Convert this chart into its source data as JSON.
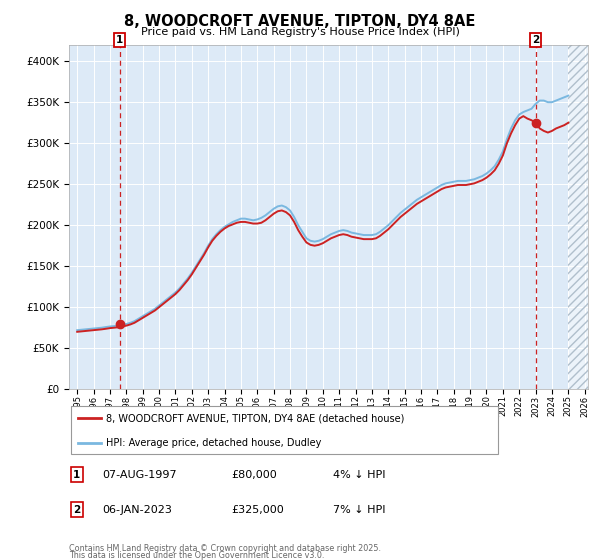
{
  "title": "8, WOODCROFT AVENUE, TIPTON, DY4 8AE",
  "subtitle": "Price paid vs. HM Land Registry's House Price Index (HPI)",
  "ylim": [
    0,
    420000
  ],
  "xlim_start": 1994.5,
  "xlim_end": 2026.2,
  "hatch_start": 2025.0,
  "sale1_year": 1997.6,
  "sale1_price": 80000,
  "sale2_year": 2023.02,
  "sale2_price": 325000,
  "legend_line1": "8, WOODCROFT AVENUE, TIPTON, DY4 8AE (detached house)",
  "legend_line2": "HPI: Average price, detached house, Dudley",
  "annotation1_label": "1",
  "annotation1_date": "07-AUG-1997",
  "annotation1_price": "£80,000",
  "annotation1_hpi": "4% ↓ HPI",
  "annotation2_label": "2",
  "annotation2_date": "06-JAN-2023",
  "annotation2_price": "£325,000",
  "annotation2_hpi": "7% ↓ HPI",
  "footnote1": "Contains HM Land Registry data © Crown copyright and database right 2025.",
  "footnote2": "This data is licensed under the Open Government Licence v3.0.",
  "hpi_color": "#7ab8e0",
  "price_color": "#cc2222",
  "bg_color": "#ddeaf7",
  "hatch_color": "#b0bfcc",
  "grid_color": "#ffffff",
  "sale_marker_color": "#cc2222",
  "dashed_line_color": "#cc2222",
  "hpi_data_x": [
    1995.0,
    1995.25,
    1995.5,
    1995.75,
    1996.0,
    1996.25,
    1996.5,
    1996.75,
    1997.0,
    1997.25,
    1997.5,
    1997.75,
    1998.0,
    1998.25,
    1998.5,
    1998.75,
    1999.0,
    1999.25,
    1999.5,
    1999.75,
    2000.0,
    2000.25,
    2000.5,
    2000.75,
    2001.0,
    2001.25,
    2001.5,
    2001.75,
    2002.0,
    2002.25,
    2002.5,
    2002.75,
    2003.0,
    2003.25,
    2003.5,
    2003.75,
    2004.0,
    2004.25,
    2004.5,
    2004.75,
    2005.0,
    2005.25,
    2005.5,
    2005.75,
    2006.0,
    2006.25,
    2006.5,
    2006.75,
    2007.0,
    2007.25,
    2007.5,
    2007.75,
    2008.0,
    2008.25,
    2008.5,
    2008.75,
    2009.0,
    2009.25,
    2009.5,
    2009.75,
    2010.0,
    2010.25,
    2010.5,
    2010.75,
    2011.0,
    2011.25,
    2011.5,
    2011.75,
    2012.0,
    2012.25,
    2012.5,
    2012.75,
    2013.0,
    2013.25,
    2013.5,
    2013.75,
    2014.0,
    2014.25,
    2014.5,
    2014.75,
    2015.0,
    2015.25,
    2015.5,
    2015.75,
    2016.0,
    2016.25,
    2016.5,
    2016.75,
    2017.0,
    2017.25,
    2017.5,
    2017.75,
    2018.0,
    2018.25,
    2018.5,
    2018.75,
    2019.0,
    2019.25,
    2019.5,
    2019.75,
    2020.0,
    2020.25,
    2020.5,
    2020.75,
    2021.0,
    2021.25,
    2021.5,
    2021.75,
    2022.0,
    2022.25,
    2022.5,
    2022.75,
    2023.0,
    2023.25,
    2023.5,
    2023.75,
    2024.0,
    2024.25,
    2024.5,
    2024.75,
    2025.0
  ],
  "hpi_data_y": [
    72000,
    72500,
    73000,
    73500,
    74000,
    74500,
    75000,
    75800,
    76500,
    77000,
    77500,
    78500,
    79500,
    81000,
    83000,
    86000,
    89000,
    92000,
    95000,
    98000,
    102000,
    106000,
    110000,
    114000,
    118000,
    123000,
    129000,
    135000,
    142000,
    150000,
    158000,
    166000,
    175000,
    183000,
    189000,
    194000,
    198000,
    201000,
    204000,
    206000,
    208000,
    208000,
    207000,
    206000,
    207000,
    209000,
    212000,
    216000,
    220000,
    223000,
    224000,
    222000,
    218000,
    210000,
    200000,
    192000,
    184000,
    181000,
    180000,
    181000,
    183000,
    186000,
    189000,
    191000,
    193000,
    194000,
    193000,
    191000,
    190000,
    189000,
    188000,
    188000,
    188000,
    189000,
    192000,
    196000,
    200000,
    205000,
    210000,
    215000,
    219000,
    223000,
    227000,
    231000,
    234000,
    237000,
    240000,
    243000,
    246000,
    249000,
    251000,
    252000,
    253000,
    254000,
    254000,
    254000,
    255000,
    256000,
    258000,
    260000,
    263000,
    267000,
    272000,
    280000,
    290000,
    305000,
    318000,
    328000,
    335000,
    338000,
    340000,
    342000,
    348000,
    352000,
    352000,
    350000,
    350000,
    352000,
    354000,
    356000,
    358000
  ],
  "price_data_x": [
    1995.0,
    1995.25,
    1995.5,
    1995.75,
    1996.0,
    1996.25,
    1996.5,
    1996.75,
    1997.0,
    1997.25,
    1997.5,
    1997.75,
    1998.0,
    1998.25,
    1998.5,
    1998.75,
    1999.0,
    1999.25,
    1999.5,
    1999.75,
    2000.0,
    2000.25,
    2000.5,
    2000.75,
    2001.0,
    2001.25,
    2001.5,
    2001.75,
    2002.0,
    2002.25,
    2002.5,
    2002.75,
    2003.0,
    2003.25,
    2003.5,
    2003.75,
    2004.0,
    2004.25,
    2004.5,
    2004.75,
    2005.0,
    2005.25,
    2005.5,
    2005.75,
    2006.0,
    2006.25,
    2006.5,
    2006.75,
    2007.0,
    2007.25,
    2007.5,
    2007.75,
    2008.0,
    2008.25,
    2008.5,
    2008.75,
    2009.0,
    2009.25,
    2009.5,
    2009.75,
    2010.0,
    2010.25,
    2010.5,
    2010.75,
    2011.0,
    2011.25,
    2011.5,
    2011.75,
    2012.0,
    2012.25,
    2012.5,
    2012.75,
    2013.0,
    2013.25,
    2013.5,
    2013.75,
    2014.0,
    2014.25,
    2014.5,
    2014.75,
    2015.0,
    2015.25,
    2015.5,
    2015.75,
    2016.0,
    2016.25,
    2016.5,
    2016.75,
    2017.0,
    2017.25,
    2017.5,
    2017.75,
    2018.0,
    2018.25,
    2018.5,
    2018.75,
    2019.0,
    2019.25,
    2019.5,
    2019.75,
    2020.0,
    2020.25,
    2020.5,
    2020.75,
    2021.0,
    2021.25,
    2021.5,
    2021.75,
    2022.0,
    2022.25,
    2022.5,
    2022.75,
    2023.0,
    2023.25,
    2023.5,
    2023.75,
    2024.0,
    2024.25,
    2024.5,
    2024.75,
    2025.0
  ],
  "price_data_y": [
    70000,
    70500,
    71000,
    71500,
    72000,
    72500,
    73000,
    73700,
    74500,
    75000,
    75500,
    76500,
    77500,
    79000,
    81000,
    84000,
    87000,
    90000,
    93000,
    96000,
    100000,
    104000,
    108000,
    112000,
    116000,
    121000,
    127000,
    133000,
    140000,
    148000,
    156000,
    164000,
    173000,
    181000,
    187000,
    192000,
    196000,
    199000,
    201000,
    203000,
    204000,
    204000,
    203000,
    202000,
    202000,
    203000,
    206000,
    210000,
    214000,
    217000,
    218000,
    216000,
    212000,
    204000,
    194000,
    186000,
    179000,
    176000,
    175000,
    176000,
    178000,
    181000,
    184000,
    186000,
    188000,
    189000,
    188000,
    186000,
    185000,
    184000,
    183000,
    183000,
    183000,
    184000,
    187000,
    191000,
    195000,
    200000,
    205000,
    210000,
    214000,
    218000,
    222000,
    226000,
    229000,
    232000,
    235000,
    238000,
    241000,
    244000,
    246000,
    247000,
    248000,
    249000,
    249000,
    249000,
    250000,
    251000,
    253000,
    255000,
    258000,
    262000,
    267000,
    275000,
    285000,
    300000,
    312000,
    322000,
    330000,
    333000,
    330000,
    328000,
    325000,
    318000,
    315000,
    313000,
    315000,
    318000,
    320000,
    322000,
    325000
  ]
}
